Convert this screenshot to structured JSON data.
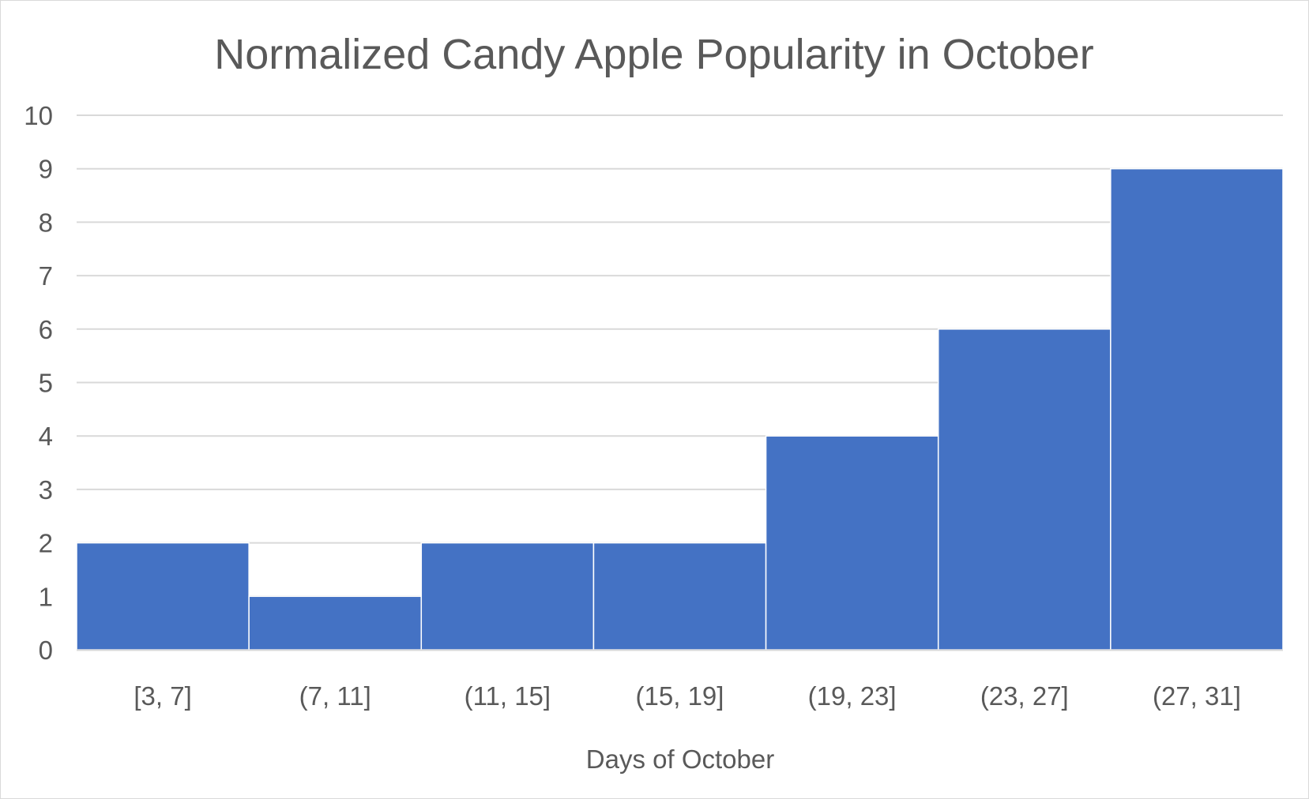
{
  "chart_data": {
    "type": "bar",
    "title": "Normalized Candy Apple Popularity in October",
    "xlabel": "Days of October",
    "ylabel": "",
    "categories": [
      "[3, 7]",
      "(7, 11]",
      "(11, 15]",
      "(15, 19]",
      "(19, 23]",
      "(23, 27]",
      "(27, 31]"
    ],
    "values": [
      2,
      1,
      2,
      2,
      4,
      6,
      9
    ],
    "ylim": [
      0,
      10
    ],
    "yticks": [
      "0",
      "1",
      "2",
      "3",
      "4",
      "5",
      "6",
      "7",
      "8",
      "9",
      "10"
    ],
    "grid": "horizontal",
    "legend": "none",
    "colors": {
      "bar": "#4472C4",
      "grid": "#d9d9d9",
      "text": "#595959"
    }
  }
}
